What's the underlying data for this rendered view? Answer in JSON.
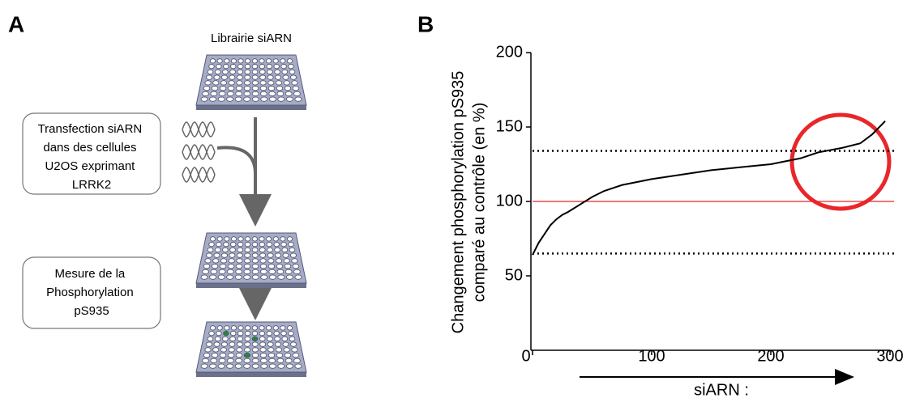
{
  "panel_a": {
    "letter": "A",
    "library": "Librairie siARN",
    "step1": [
      "Transfection siARN",
      "dans des cellules",
      "U2OS exprimant",
      "LRRK2"
    ],
    "step2": [
      "Mesure de la",
      "Phosphorylation",
      "pS935"
    ]
  },
  "chart_data": {
    "type": "line",
    "panel_letter": "B",
    "y_label": [
      "Changement phosphorylation pS935",
      "comparé au contrôle (en %)"
    ],
    "x_label": "siARN :",
    "x": [
      0,
      5,
      10,
      15,
      20,
      25,
      30,
      40,
      50,
      60,
      75,
      100,
      125,
      150,
      175,
      200,
      225,
      240,
      260,
      275,
      285,
      296
    ],
    "series": [
      {
        "color": "#000000",
        "values": [
          64,
          72,
          78,
          84,
          88,
          91,
          93,
          98,
          103,
          107,
          111,
          115,
          118,
          121,
          123,
          125,
          129,
          133,
          136,
          139,
          145,
          154
        ]
      }
    ],
    "xlim": [
      0,
      300
    ],
    "ylim": [
      0,
      200
    ],
    "xticks": [
      0,
      100,
      200,
      300
    ],
    "yticks": [
      50,
      100,
      150,
      200
    ],
    "reference_lines": [
      {
        "value": 100,
        "color": "#e8272a",
        "style": "solid"
      },
      {
        "value": 134,
        "color": "#000000",
        "style": "dotted"
      },
      {
        "value": 65,
        "color": "#000000",
        "style": "dotted"
      }
    ]
  }
}
